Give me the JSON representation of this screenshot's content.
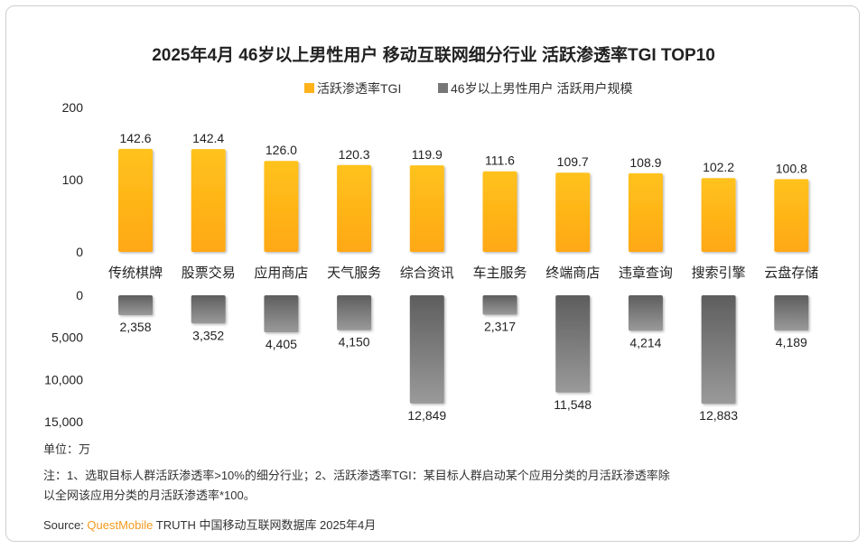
{
  "chart_data": {
    "type": "bar",
    "title": "2025年4月 46岁以上男性用户 移动互联网细分行业 活跃渗透率TGI TOP10",
    "categories": [
      "传统棋牌",
      "股票交易",
      "应用商店",
      "天气服务",
      "综合资讯",
      "车主服务",
      "终端商店",
      "违章查询",
      "搜索引擎",
      "云盘存储"
    ],
    "series": [
      {
        "name": "活跃渗透率TGI",
        "color": "#ffb21a",
        "values": [
          142.6,
          142.4,
          126.0,
          120.3,
          119.9,
          111.6,
          109.7,
          108.9,
          102.2,
          100.8
        ],
        "labels": [
          "142.6",
          "142.4",
          "126.0",
          "120.3",
          "119.9",
          "111.6",
          "109.7",
          "108.9",
          "102.2",
          "100.8"
        ],
        "yticks": [
          "200",
          "100",
          "0"
        ],
        "ylim": [
          0,
          200
        ]
      },
      {
        "name": "46岁以上男性用户 活跃用户规模",
        "color": "#808080",
        "values": [
          2358,
          3352,
          4405,
          4150,
          12849,
          2317,
          11548,
          4214,
          12883,
          4189
        ],
        "labels": [
          "2,358",
          "3,352",
          "4,405",
          "4,150",
          "12,849",
          "2,317",
          "11,548",
          "4,214",
          "12,883",
          "4,189"
        ],
        "yticks": [
          "0",
          "5,000",
          "10,000",
          "15,000"
        ],
        "ylim": [
          0,
          15000
        ],
        "inverted": true
      }
    ],
    "legend_position": "top"
  },
  "footer": {
    "unit": "单位：万",
    "note_line1": "注：1、选取目标人群活跃渗透率>10%的细分行业；2、活跃渗透率TGI：某目标人群启动某个应用分类的月活跃渗透率除",
    "note_line2": "以全网该应用分类的月活跃渗透率*100。",
    "source_prefix": "Source: ",
    "source_brand": "QuestMobile",
    "source_rest": " TRUTH 中国移动互联网数据库 2025年4月"
  }
}
